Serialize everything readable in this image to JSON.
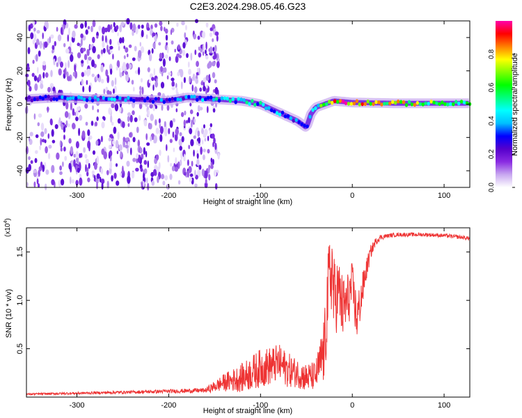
{
  "figure": {
    "title": "C2E3.2024.298.05.46.G23"
  },
  "chart_data": [
    {
      "type": "heatmap",
      "xlabel": "Height of straight line (km)",
      "ylabel": "Frequency (Hz)",
      "xlim": [
        -355,
        128
      ],
      "ylim": [
        -50,
        50
      ],
      "xticks": [
        -300,
        -200,
        -100,
        0,
        100
      ],
      "yticks": [
        -40,
        -20,
        0,
        20,
        40
      ],
      "colorbar": {
        "label": "Normalized spectral amplitude",
        "range": [
          0,
          1
        ],
        "ticks": [
          0.0,
          0.2,
          0.4,
          0.6,
          0.8
        ],
        "colors": [
          "#ffffff",
          "#c8a8f0",
          "#8a2be2",
          "#5500cc",
          "#0000ff",
          "#00bfff",
          "#00ffff",
          "#00ff7f",
          "#00ff00",
          "#7fff00",
          "#ffff00",
          "#ff7f00",
          "#ff0000",
          "#ff00aa"
        ]
      },
      "noise_region": {
        "x": [
          -355,
          -145
        ],
        "y": [
          -50,
          50
        ]
      },
      "ridge": {
        "x": [
          -355,
          -320,
          -280,
          -240,
          -200,
          -180,
          -150,
          -120,
          -100,
          -80,
          -60,
          -50,
          -45,
          -40,
          -30,
          -20,
          0,
          50,
          100,
          128
        ],
        "y": [
          3,
          4,
          3,
          3,
          2,
          4,
          3,
          2,
          0,
          -5,
          -10,
          -14,
          -6,
          -2,
          0,
          2,
          1,
          0.5,
          0.5,
          0.5
        ],
        "amplitude": [
          0.25,
          0.35,
          0.4,
          0.35,
          0.3,
          0.4,
          0.45,
          0.5,
          0.45,
          0.4,
          0.35,
          0.3,
          0.4,
          0.5,
          0.6,
          0.75,
          0.8,
          0.7,
          0.65,
          0.6
        ]
      },
      "grid": false
    },
    {
      "type": "line",
      "xlabel": "Height of straight line (km)",
      "ylabel": "SNR (10 * v/v)",
      "multiplier": "(x10",
      "multiplier_exp": "4",
      "multiplier_close": ")",
      "xlim": [
        -355,
        128
      ],
      "ylim": [
        0,
        17500
      ],
      "xticks": [
        -300,
        -200,
        -100,
        0,
        100
      ],
      "yticks": [
        5000,
        10000,
        15000
      ],
      "ytick_labels": [
        "0.5",
        "1.0",
        "1.5"
      ],
      "color": "#ee3333",
      "series": [
        {
          "x": [
            -355,
            -300,
            -250,
            -200,
            -160,
            -140,
            -120,
            -110,
            -100,
            -90,
            -80,
            -70,
            -60,
            -50,
            -40,
            -35,
            -30,
            -28,
            -25,
            -22,
            -20,
            -15,
            -10,
            -5,
            0,
            5,
            10,
            15,
            20,
            25,
            30,
            40,
            50,
            60,
            70,
            80,
            90,
            100,
            110,
            120,
            128
          ],
          "y": [
            300,
            400,
            500,
            600,
            700,
            1500,
            2000,
            2500,
            3000,
            3200,
            3500,
            2800,
            2500,
            2000,
            2200,
            3500,
            5000,
            9000,
            12000,
            13500,
            10000,
            11000,
            9000,
            10000,
            11500,
            8000,
            10500,
            13000,
            15000,
            16000,
            16500,
            16700,
            16800,
            16800,
            16800,
            16800,
            16750,
            16700,
            16600,
            16500,
            16400
          ],
          "noise": [
            100,
            120,
            150,
            200,
            250,
            900,
            1500,
            1800,
            2000,
            2000,
            2000,
            1800,
            1500,
            1500,
            1500,
            2500,
            4000,
            4500,
            4500,
            4500,
            4500,
            3500,
            3500,
            3000,
            2500,
            2500,
            2000,
            1200,
            700,
            400,
            300,
            200,
            200,
            200,
            200,
            200,
            200,
            200,
            200,
            200,
            200
          ]
        }
      ],
      "grid": false
    }
  ]
}
